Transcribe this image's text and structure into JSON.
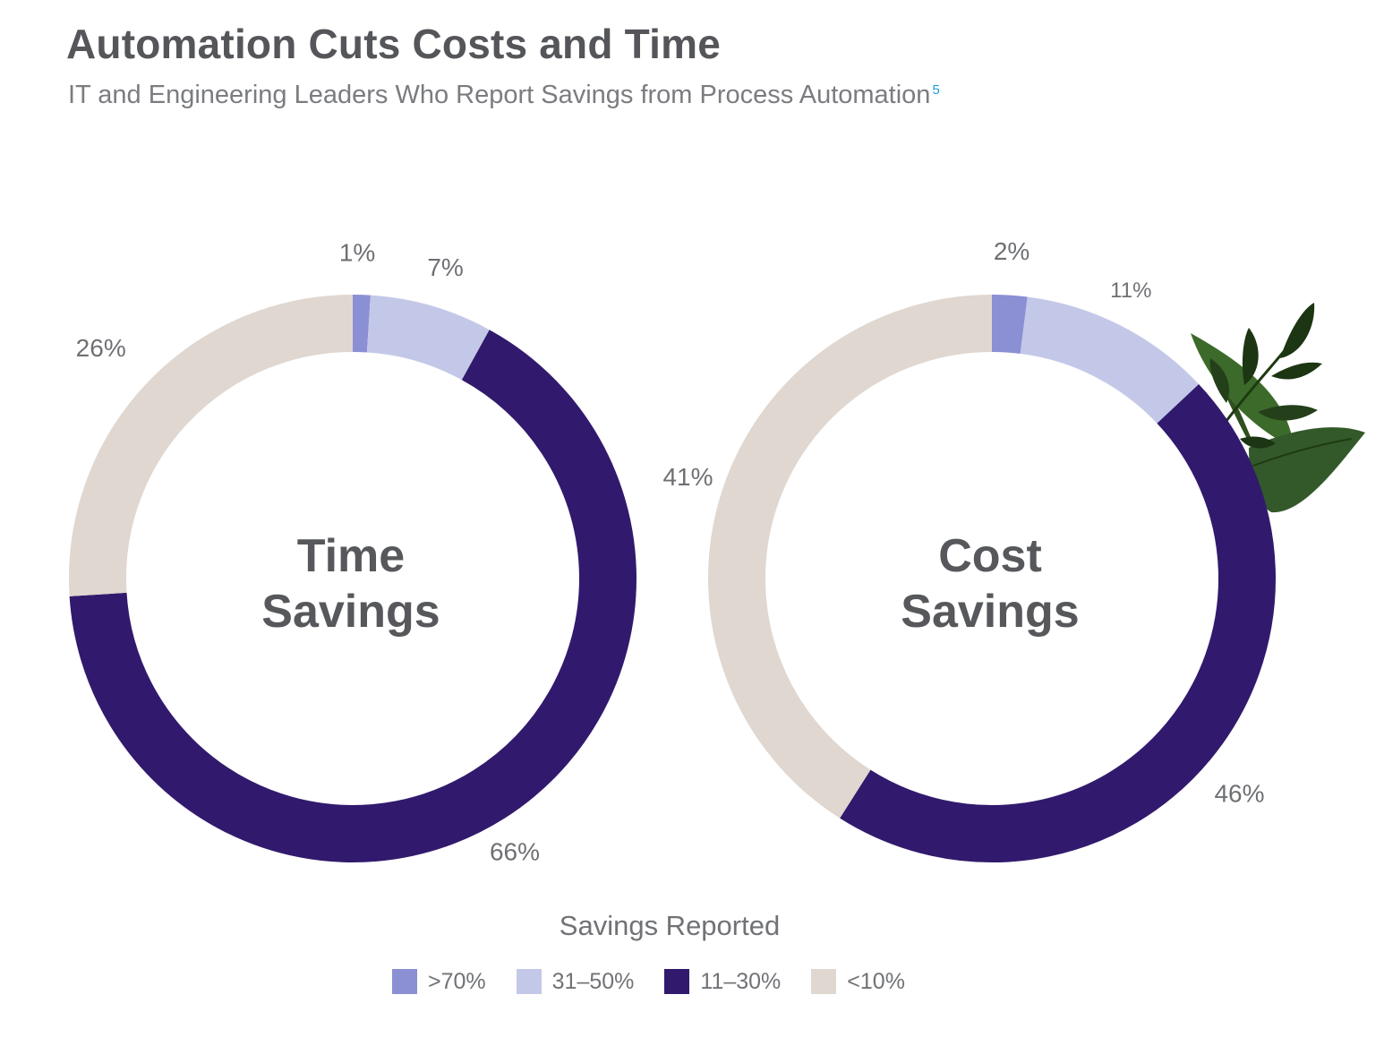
{
  "title": "Automation Cuts Costs and Time",
  "subtitle": "IT and Engineering Leaders Who Report Savings from Process Automation",
  "footnote_ref": "5",
  "colors": {
    ">70%": "#8b8fd3",
    "31–50%": "#c4c8e8",
    "11–30%": "#311a6d",
    "<10%": "#dfd7d0"
  },
  "chart_data": [
    {
      "type": "pie",
      "center_label": [
        "Time",
        "Savings"
      ],
      "categories": [
        ">70%",
        "31–50%",
        "11–30%",
        "<10%"
      ],
      "values": [
        1,
        7,
        66,
        26
      ],
      "labels": [
        "1%",
        "7%",
        "66%",
        "26%"
      ]
    },
    {
      "type": "pie",
      "center_label": [
        "Cost",
        "Savings"
      ],
      "categories": [
        ">70%",
        "31–50%",
        "11–30%",
        "<10%"
      ],
      "values": [
        2,
        11,
        46,
        41
      ],
      "labels": [
        "2%",
        "11%",
        "46%",
        "41%"
      ]
    }
  ],
  "legend": {
    "title": "Savings Reported",
    "items": [
      ">70%",
      "31–50%",
      "11–30%",
      "<10%"
    ]
  }
}
